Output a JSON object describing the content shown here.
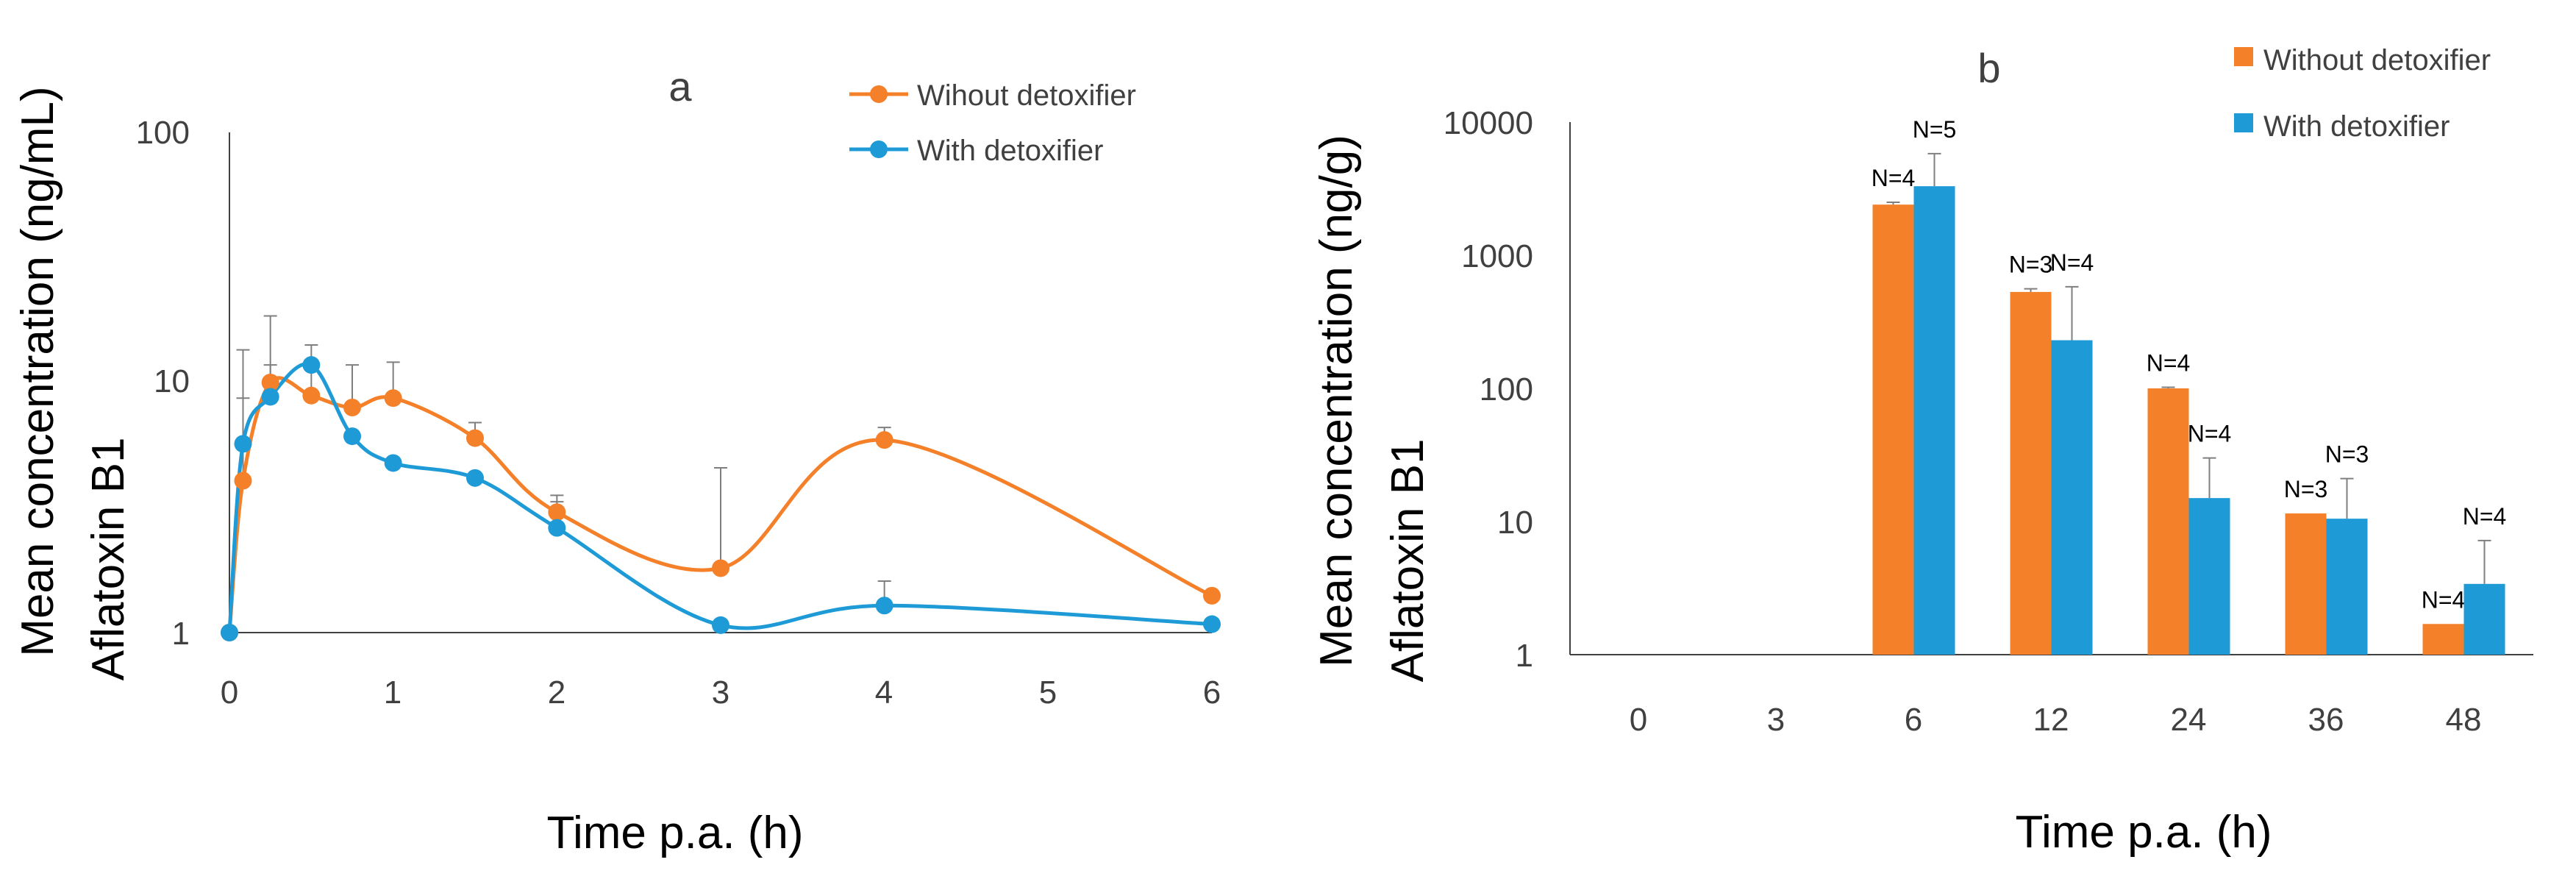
{
  "colors": {
    "without": "#F5802A",
    "with": "#1E9BD7",
    "axis": "#404040"
  },
  "chart_data": [
    {
      "panel_label": "a",
      "type": "line",
      "ylabel_line1": "Mean concentration (ng/mL)",
      "ylabel_line2": "Aflatoxin B1",
      "xlabel": "Time p.a. (h)",
      "yscale": "log",
      "ylim": [
        1,
        100
      ],
      "xlim": [
        0,
        6
      ],
      "y_ticks": [
        "1",
        "10",
        "100"
      ],
      "x_ticks": [
        "0",
        "1",
        "2",
        "3",
        "4",
        "5",
        "6"
      ],
      "legend_position": "top-right",
      "series": [
        {
          "name": "Wihout detoxifier",
          "color_key": "without",
          "points": [
            {
              "x": 0,
              "y": 1
            },
            {
              "x": 0.083,
              "y": 4.0,
              "err": 13.2
            },
            {
              "x": 0.25,
              "y": 9.8,
              "err": 18.0
            },
            {
              "x": 0.5,
              "y": 8.7,
              "err": 12.0
            },
            {
              "x": 0.75,
              "y": 7.8,
              "err": 11.5
            },
            {
              "x": 1,
              "y": 8.5,
              "err": 11.8
            },
            {
              "x": 1.5,
              "y": 5.9,
              "err": 6.8
            },
            {
              "x": 2,
              "y": 3.0,
              "err": 3.5
            },
            {
              "x": 3,
              "y": 1.8,
              "err": 4.5
            },
            {
              "x": 4,
              "y": 5.8,
              "err": 6.5
            },
            {
              "x": 6,
              "y": 1.4
            }
          ]
        },
        {
          "name": "With detoxifier",
          "color_key": "with",
          "points": [
            {
              "x": 0,
              "y": 1
            },
            {
              "x": 0.083,
              "y": 5.6,
              "err": 8.5
            },
            {
              "x": 0.25,
              "y": 8.6,
              "err": 11.5
            },
            {
              "x": 0.5,
              "y": 11.5,
              "err": 13.8
            },
            {
              "x": 0.75,
              "y": 6.0
            },
            {
              "x": 1,
              "y": 4.7
            },
            {
              "x": 1.5,
              "y": 4.1
            },
            {
              "x": 2,
              "y": 2.6,
              "err": 3.3
            },
            {
              "x": 3,
              "y": 1.07
            },
            {
              "x": 4,
              "y": 1.28,
              "err": 1.6
            },
            {
              "x": 6,
              "y": 1.08
            }
          ]
        }
      ]
    },
    {
      "panel_label": "b",
      "type": "bar",
      "ylabel_line1": "Mean concentration (ng/g)",
      "ylabel_line2": "Aflatoxin B1",
      "xlabel": "Time p.a. (h)",
      "yscale": "log",
      "ylim": [
        1,
        10000
      ],
      "y_ticks": [
        "1",
        "10",
        "100",
        "1000",
        "10000"
      ],
      "categories": [
        "0",
        "3",
        "6",
        "12",
        "24",
        "36",
        "48"
      ],
      "legend_position": "top-right",
      "series": [
        {
          "name": "Without detoxifier",
          "color_key": "without",
          "values": [
            null,
            null,
            2400,
            530,
            100,
            11.5,
            1.7
          ],
          "errors": [
            null,
            null,
            2500,
            560,
            102,
            null,
            null
          ],
          "n_labels": [
            "",
            "",
            "N=4",
            "N=3",
            "N=4",
            "N=3",
            "N=4"
          ]
        },
        {
          "name": "With detoxifier",
          "color_key": "with",
          "values": [
            null,
            null,
            3300,
            230,
            15,
            10.5,
            3.4
          ],
          "errors": [
            null,
            null,
            5800,
            580,
            30,
            21,
            7.2
          ],
          "n_labels": [
            "",
            "",
            "N=5",
            "N=4",
            "N=4",
            "N=3",
            "N=4"
          ]
        }
      ]
    }
  ]
}
